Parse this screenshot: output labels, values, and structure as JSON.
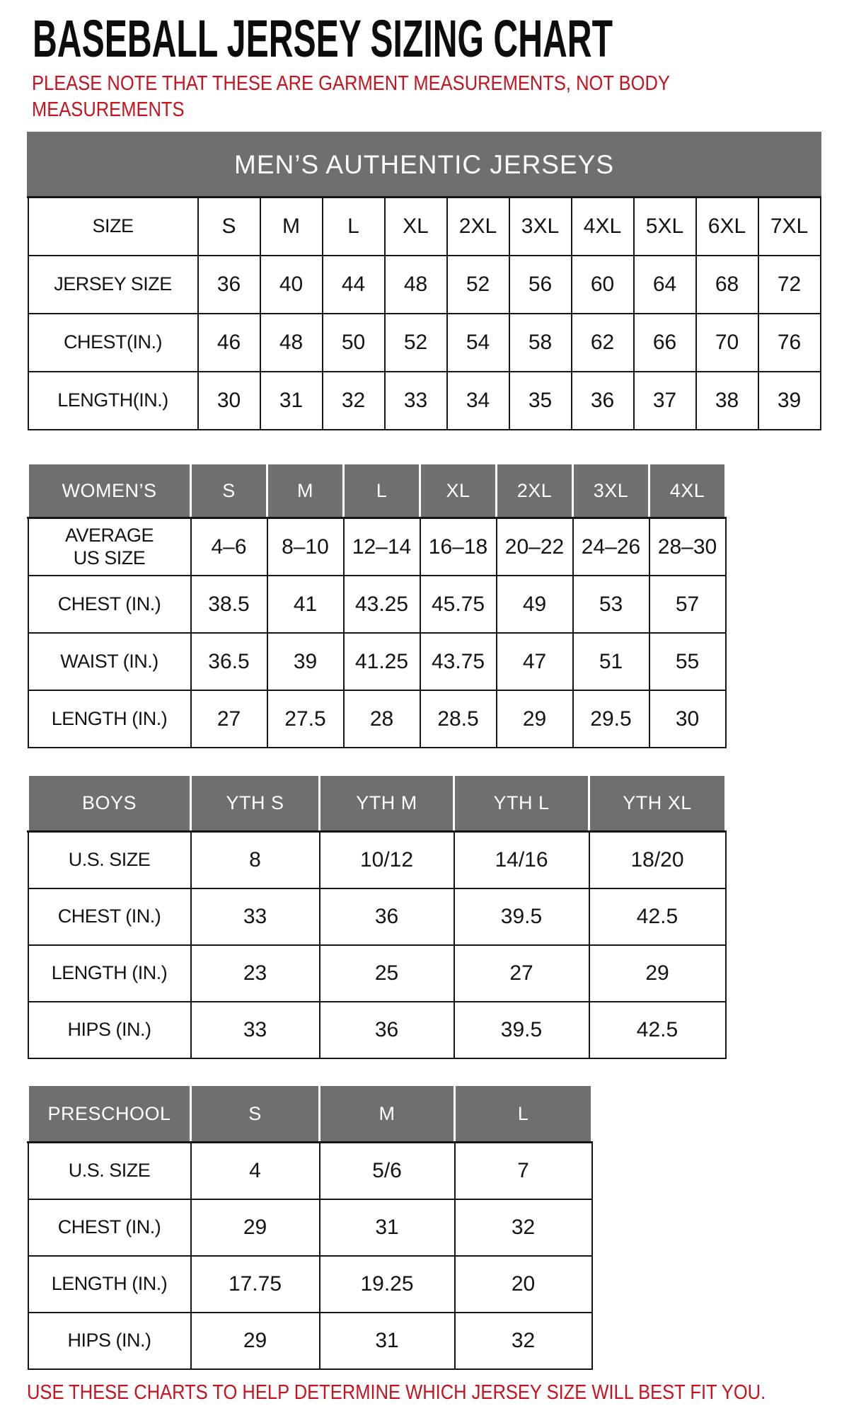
{
  "page": {
    "title": "BASEBALL JERSEY SIZING CHART",
    "note": "PLEASE NOTE THAT THESE ARE GARMENT MEASUREMENTS, NOT BODY\nMEASUREMENTS",
    "footer": "USE THESE CHARTS TO HELP DETERMINE WHICH JERSEY SIZE WILL BEST FIT YOU.",
    "colors": {
      "header_gray": "#6f6f6f",
      "note_red": "#c8121e",
      "text_black": "#141414",
      "border_black": "#161616",
      "background": "#ffffff"
    }
  },
  "tables": [
    {
      "id": "mens",
      "banner": "MEN’S AUTHENTIC JERSEYS",
      "rows": [
        [
          "SIZE",
          "S",
          "M",
          "L",
          "XL",
          "2XL",
          "3XL",
          "4XL",
          "5XL",
          "6XL",
          "7XL"
        ],
        [
          "JERSEY SIZE",
          "36",
          "40",
          "44",
          "48",
          "52",
          "56",
          "60",
          "64",
          "68",
          "72"
        ],
        [
          "CHEST(IN.)",
          "46",
          "48",
          "50",
          "52",
          "54",
          "58",
          "62",
          "66",
          "70",
          "76"
        ],
        [
          "LENGTH(IN.)",
          "30",
          "31",
          "32",
          "33",
          "34",
          "35",
          "36",
          "37",
          "38",
          "39"
        ]
      ]
    },
    {
      "id": "womens",
      "header": [
        "WOMEN’S",
        "S",
        "M",
        "L",
        "XL",
        "2XL",
        "3XL",
        "4XL"
      ],
      "rows": [
        [
          "AVERAGE\nUS SIZE",
          "4–6",
          "8–10",
          "12–14",
          "16–18",
          "20–22",
          "24–26",
          "28–30"
        ],
        [
          "CHEST (IN.)",
          "38.5",
          "41",
          "43.25",
          "45.75",
          "49",
          "53",
          "57"
        ],
        [
          "WAIST (IN.)",
          "36.5",
          "39",
          "41.25",
          "43.75",
          "47",
          "51",
          "55"
        ],
        [
          "LENGTH (IN.)",
          "27",
          "27.5",
          "28",
          "28.5",
          "29",
          "29.5",
          "30"
        ]
      ]
    },
    {
      "id": "boys",
      "header": [
        "BOYS",
        "YTH S",
        "YTH M",
        "YTH L",
        "YTH XL"
      ],
      "rows": [
        [
          "U.S. SIZE",
          "8",
          "10/12",
          "14/16",
          "18/20"
        ],
        [
          "CHEST (IN.)",
          "33",
          "36",
          "39.5",
          "42.5"
        ],
        [
          "LENGTH (IN.)",
          "23",
          "25",
          "27",
          "29"
        ],
        [
          "HIPS (IN.)",
          "33",
          "36",
          "39.5",
          "42.5"
        ]
      ]
    },
    {
      "id": "preschool",
      "header": [
        "PRESCHOOL",
        "S",
        "M",
        "L"
      ],
      "rows": [
        [
          "U.S. SIZE",
          "4",
          "5/6",
          "7"
        ],
        [
          "CHEST (IN.)",
          "29",
          "31",
          "32"
        ],
        [
          "LENGTH (IN.)",
          "17.75",
          "19.25",
          "20"
        ],
        [
          "HIPS (IN.)",
          "29",
          "31",
          "32"
        ]
      ]
    }
  ]
}
